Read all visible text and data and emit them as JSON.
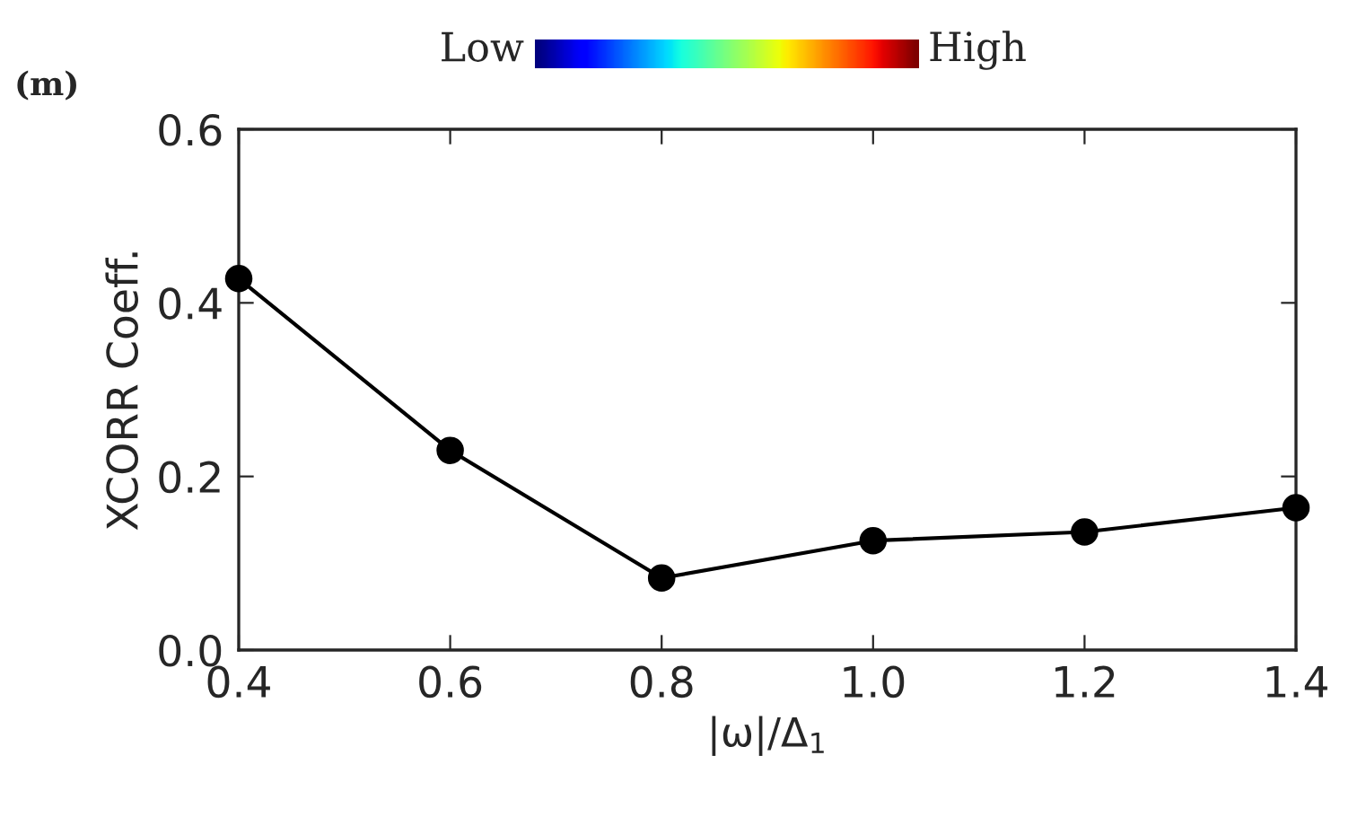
{
  "chart_data": {
    "type": "line",
    "title": "(m)",
    "xlabel": "|ω|/Δ$_{1}$",
    "ylabel": "XCORR Coeff.",
    "x": [
      0.4,
      0.6,
      0.8,
      1.0,
      1.2,
      1.4
    ],
    "series": [
      {
        "color": "#000000",
        "values": [
          0.428,
          0.23,
          0.083,
          0.126,
          0.136,
          0.164
        ]
      }
    ],
    "xlim": [
      0.4,
      1.4
    ],
    "xticks": [
      {
        "value": 0.4,
        "label": "0.4"
      },
      {
        "value": 0.6,
        "label": "0.6"
      },
      {
        "value": 0.8,
        "label": "0.8"
      },
      {
        "value": 1.0,
        "label": "1.0"
      },
      {
        "value": 1.2,
        "label": "1.2"
      },
      {
        "value": 1.4,
        "label": "1.4"
      }
    ],
    "ylim": [
      0,
      0.6
    ],
    "yticks": [
      {
        "value": 0,
        "label": "0.0"
      },
      {
        "value": 0.2,
        "label": "0.2"
      },
      {
        "value": 0.4,
        "label": "0.4"
      },
      {
        "value": 0.6,
        "label": "0.6"
      }
    ],
    "marker": "circle",
    "line_style": "solid",
    "grid": false,
    "legend": false,
    "annotations": [
      "Low",
      "High"
    ]
  }
}
